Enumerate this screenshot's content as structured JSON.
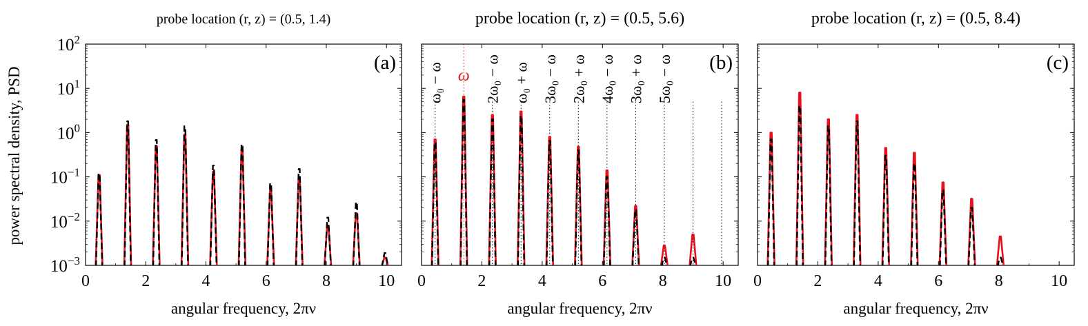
{
  "figure": {
    "ylabel": "power spectral density, PSD"
  },
  "chart_data": [
    {
      "panel": "(a)",
      "title": "probe location (r, z) = (0.5, 1.4)",
      "type": "line",
      "xlabel": "angular frequency, 2πν",
      "ylabel": "power spectral density, PSD",
      "xlim": [
        0,
        10.5
      ],
      "ylim": [
        0.001,
        100
      ],
      "yscale": "log",
      "xticks": [
        0,
        2,
        4,
        6,
        8,
        10
      ],
      "yticks": [
        0.001,
        0.01,
        0.1,
        1,
        10,
        100
      ],
      "series": [
        {
          "style": "solid",
          "color": "#e8101a",
          "peaks": [
            [
              0.45,
              0.11
            ],
            [
              1.4,
              1.5
            ],
            [
              2.35,
              0.5
            ],
            [
              3.3,
              0.9
            ],
            [
              4.25,
              0.13
            ],
            [
              5.2,
              0.4
            ],
            [
              6.15,
              0.05
            ],
            [
              7.1,
              0.1
            ],
            [
              8.05,
              0.008
            ],
            [
              9.0,
              0.015
            ],
            [
              9.95,
              0.0015
            ]
          ]
        },
        {
          "style": "dashed",
          "color": "#000000",
          "peaks": [
            [
              0.45,
              0.12
            ],
            [
              1.4,
              1.8
            ],
            [
              2.35,
              0.68
            ],
            [
              3.3,
              1.4
            ],
            [
              4.25,
              0.18
            ],
            [
              5.2,
              0.55
            ],
            [
              6.15,
              0.072
            ],
            [
              7.1,
              0.15
            ],
            [
              8.05,
              0.012
            ],
            [
              9.0,
              0.027
            ],
            [
              9.95,
              0.0019
            ]
          ]
        }
      ]
    },
    {
      "panel": "(b)",
      "title": "probe location (r, z) = (0.5, 5.6)",
      "type": "line",
      "xlabel": "angular frequency, 2πν",
      "xlim": [
        0,
        10.5
      ],
      "ylim": [
        0.001,
        100
      ],
      "yscale": "log",
      "xticks": [
        0,
        2,
        4,
        6,
        8,
        10
      ],
      "series": [
        {
          "style": "solid",
          "color": "#e8101a",
          "peaks": [
            [
              0.45,
              0.7
            ],
            [
              1.4,
              6.5
            ],
            [
              2.35,
              2.5
            ],
            [
              3.3,
              3.0
            ],
            [
              4.25,
              0.8
            ],
            [
              5.2,
              0.48
            ],
            [
              6.15,
              0.14
            ],
            [
              7.1,
              0.022
            ],
            [
              8.05,
              0.0028
            ],
            [
              9.0,
              0.005
            ]
          ]
        },
        {
          "style": "dashed",
          "color": "#000000",
          "peaks": [
            [
              0.45,
              0.6
            ],
            [
              1.4,
              5.5
            ],
            [
              2.35,
              2.0
            ],
            [
              3.3,
              2.4
            ],
            [
              4.25,
              0.65
            ],
            [
              5.2,
              0.4
            ],
            [
              6.15,
              0.1
            ],
            [
              7.1,
              0.018
            ],
            [
              8.05,
              0.0015
            ],
            [
              9.0,
              0.0015
            ]
          ]
        }
      ],
      "annotations": [
        {
          "x": 0.45,
          "label": "ω₀ − ω",
          "color": "#000000",
          "line_top": 5
        },
        {
          "x": 1.4,
          "label": "ω",
          "color": "#e8101a",
          "line_top": 100
        },
        {
          "x": 2.35,
          "label": "2ω₀ − ω",
          "color": "#000000",
          "line_top": 5
        },
        {
          "x": 3.3,
          "label": "ω₀ + ω",
          "color": "#000000",
          "line_top": 5
        },
        {
          "x": 4.25,
          "label": "3ω₀ − ω",
          "color": "#000000",
          "line_top": 5
        },
        {
          "x": 5.2,
          "label": "2ω₀ + ω",
          "color": "#000000",
          "line_top": 5
        },
        {
          "x": 6.15,
          "label": "4ω₀ − ω",
          "color": "#000000",
          "line_top": 5
        },
        {
          "x": 7.1,
          "label": "3ω₀ + ω",
          "color": "#000000",
          "line_top": 5
        },
        {
          "x": 8.05,
          "label": "5ω₀ − ω",
          "color": "#000000",
          "line_top": 5
        },
        {
          "x": 9.0,
          "label": "",
          "color": "#000000",
          "line_top": 5
        },
        {
          "x": 9.95,
          "label": "",
          "color": "#000000",
          "line_top": 5
        }
      ]
    },
    {
      "panel": "(c)",
      "title": "probe location (r, z) = (0.5, 8.4)",
      "type": "line",
      "xlabel": "angular frequency, 2πν",
      "xlim": [
        0,
        10.5
      ],
      "ylim": [
        0.001,
        100
      ],
      "yscale": "log",
      "xticks": [
        0,
        2,
        4,
        6,
        8,
        10
      ],
      "series": [
        {
          "style": "solid",
          "color": "#e8101a",
          "peaks": [
            [
              0.45,
              1.0
            ],
            [
              1.4,
              8.0
            ],
            [
              2.35,
              2.0
            ],
            [
              3.3,
              2.5
            ],
            [
              4.25,
              0.45
            ],
            [
              5.2,
              0.35
            ],
            [
              6.15,
              0.075
            ],
            [
              7.1,
              0.032
            ],
            [
              8.05,
              0.0045
            ]
          ]
        },
        {
          "style": "dashed",
          "color": "#000000",
          "peaks": [
            [
              0.45,
              0.7
            ],
            [
              1.4,
              4.0
            ],
            [
              2.35,
              1.4
            ],
            [
              3.3,
              1.8
            ],
            [
              4.25,
              0.3
            ],
            [
              5.2,
              0.2
            ],
            [
              6.15,
              0.05
            ],
            [
              7.1,
              0.02
            ],
            [
              8.05,
              0.0015
            ]
          ]
        }
      ]
    }
  ]
}
